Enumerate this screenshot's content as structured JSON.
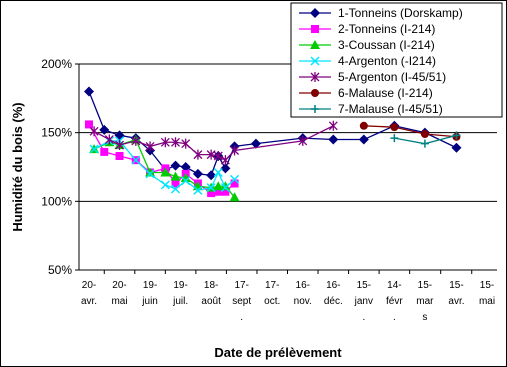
{
  "chart_data": {
    "type": "line",
    "xlabel": "Date de prélèvement",
    "ylabel": "Humidité du bois (%)",
    "ylim": [
      50,
      200
    ],
    "yticks": [
      50,
      100,
      150,
      200
    ],
    "ytick_labels": [
      "50%",
      "100%",
      "150%",
      "200%"
    ],
    "x_domain": [
      "2003-04-20",
      "2004-05-15"
    ],
    "categories": [
      {
        "date": "2003-04-20",
        "lines": [
          "20-",
          "avr."
        ]
      },
      {
        "date": "2003-05-20",
        "lines": [
          "20-",
          "mai"
        ]
      },
      {
        "date": "2003-06-19",
        "lines": [
          "19-",
          "juin"
        ]
      },
      {
        "date": "2003-07-19",
        "lines": [
          "19-",
          "juil."
        ]
      },
      {
        "date": "2003-08-18",
        "lines": [
          "18-",
          "août"
        ]
      },
      {
        "date": "2003-09-17",
        "lines": [
          "17-",
          "sept",
          "."
        ]
      },
      {
        "date": "2003-10-17",
        "lines": [
          "17-",
          "oct."
        ]
      },
      {
        "date": "2003-11-16",
        "lines": [
          "16-",
          "nov."
        ]
      },
      {
        "date": "2003-12-16",
        "lines": [
          "16-",
          "déc."
        ]
      },
      {
        "date": "2004-01-15",
        "lines": [
          "15-",
          "janv",
          "."
        ]
      },
      {
        "date": "2004-02-14",
        "lines": [
          "14-",
          "févr",
          "."
        ]
      },
      {
        "date": "2004-03-15",
        "lines": [
          "15-",
          "mar",
          "s"
        ]
      },
      {
        "date": "2004-04-15",
        "lines": [
          "15-",
          "avr."
        ]
      },
      {
        "date": "2004-05-15",
        "lines": [
          "15-",
          "mai"
        ]
      }
    ],
    "grid": "horizontal",
    "legend_position": "top-right",
    "series": [
      {
        "name": "1-Tonneins (Dorskamp)",
        "color": "#000080",
        "marker": "diamond",
        "points": [
          [
            "2003-04-20",
            180
          ],
          [
            "2003-05-05",
            152
          ],
          [
            "2003-05-20",
            148
          ],
          [
            "2003-06-05",
            146
          ],
          [
            "2003-06-19",
            137
          ],
          [
            "2003-07-04",
            123
          ],
          [
            "2003-07-14",
            126
          ],
          [
            "2003-07-24",
            125
          ],
          [
            "2003-08-05",
            120
          ],
          [
            "2003-08-18",
            119
          ],
          [
            "2003-08-25",
            133
          ],
          [
            "2003-09-01",
            124
          ],
          [
            "2003-09-10",
            140
          ],
          [
            "2003-10-01",
            142
          ],
          [
            "2003-11-16",
            146
          ],
          [
            "2003-12-16",
            145
          ],
          [
            "2004-01-15",
            145
          ],
          [
            "2004-02-14",
            155
          ],
          [
            "2004-03-15",
            150
          ],
          [
            "2004-04-15",
            139
          ]
        ]
      },
      {
        "name": "2-Tonneins (I-214)",
        "color": "#ff00ff",
        "marker": "square",
        "points": [
          [
            "2003-04-20",
            156
          ],
          [
            "2003-05-05",
            136
          ],
          [
            "2003-05-20",
            133
          ],
          [
            "2003-06-05",
            130
          ],
          [
            "2003-06-19",
            121
          ],
          [
            "2003-07-04",
            124
          ],
          [
            "2003-07-14",
            113
          ],
          [
            "2003-07-24",
            120
          ],
          [
            "2003-08-05",
            113
          ],
          [
            "2003-08-18",
            106
          ],
          [
            "2003-08-25",
            107
          ],
          [
            "2003-09-01",
            107
          ],
          [
            "2003-09-10",
            113
          ]
        ]
      },
      {
        "name": "3-Coussan (I-214)",
        "color": "#00cc00",
        "marker": "triangle",
        "points": [
          [
            "2003-04-25",
            138
          ],
          [
            "2003-05-10",
            143
          ],
          [
            "2003-05-20",
            141
          ],
          [
            "2003-06-05",
            145
          ],
          [
            "2003-06-19",
            121
          ],
          [
            "2003-07-04",
            121
          ],
          [
            "2003-07-14",
            118
          ],
          [
            "2003-07-24",
            117
          ],
          [
            "2003-08-05",
            111
          ],
          [
            "2003-08-18",
            110
          ],
          [
            "2003-08-25",
            111
          ],
          [
            "2003-09-01",
            111
          ],
          [
            "2003-09-10",
            103
          ]
        ]
      },
      {
        "name": "4-Argenton (-I214)",
        "color": "#00e5ff",
        "marker": "x",
        "points": [
          [
            "2003-04-25",
            138
          ],
          [
            "2003-05-10",
            144
          ],
          [
            "2003-05-20",
            144
          ],
          [
            "2003-06-05",
            130
          ],
          [
            "2003-06-19",
            120
          ],
          [
            "2003-07-04",
            112
          ],
          [
            "2003-07-14",
            109
          ],
          [
            "2003-07-24",
            115
          ],
          [
            "2003-08-05",
            108
          ],
          [
            "2003-08-18",
            110
          ],
          [
            "2003-08-25",
            121
          ],
          [
            "2003-09-01",
            110
          ],
          [
            "2003-09-10",
            116
          ]
        ]
      },
      {
        "name": "5-Argenton (I-45/51)",
        "color": "#800080",
        "marker": "star",
        "points": [
          [
            "2003-04-25",
            151
          ],
          [
            "2003-05-10",
            145
          ],
          [
            "2003-05-20",
            141
          ],
          [
            "2003-06-05",
            144
          ],
          [
            "2003-06-19",
            140
          ],
          [
            "2003-07-04",
            143
          ],
          [
            "2003-07-14",
            143
          ],
          [
            "2003-07-24",
            142
          ],
          [
            "2003-08-05",
            134
          ],
          [
            "2003-08-18",
            134
          ],
          [
            "2003-08-25",
            133
          ],
          [
            "2003-09-01",
            130
          ],
          [
            "2003-09-10",
            137
          ],
          [
            "2003-11-16",
            144
          ],
          [
            "2003-12-16",
            155
          ]
        ]
      },
      {
        "name": "6-Malause (I-214)",
        "color": "#800000",
        "marker": "circle",
        "points": [
          [
            "2004-01-15",
            155
          ],
          [
            "2004-02-14",
            154
          ],
          [
            "2004-03-15",
            149
          ],
          [
            "2004-04-15",
            147
          ]
        ]
      },
      {
        "name": "7-Malause (I-45/51)",
        "color": "#008080",
        "marker": "plus",
        "points": [
          [
            "2004-02-14",
            146
          ],
          [
            "2004-03-15",
            142
          ],
          [
            "2004-04-15",
            148
          ]
        ]
      }
    ]
  }
}
